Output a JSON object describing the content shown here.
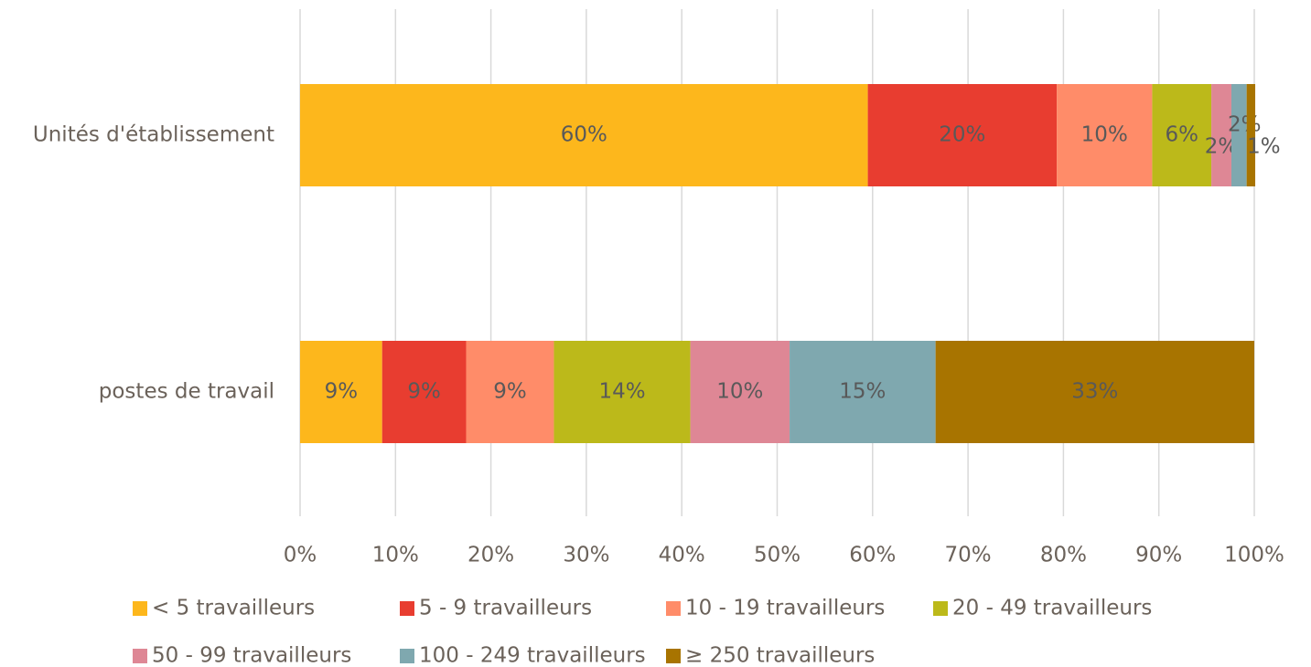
{
  "chart_data": {
    "type": "stacked_barh",
    "categories": [
      "Unités d'établissement",
      "postes de travail"
    ],
    "series": [
      {
        "name": "< 5 travailleurs",
        "color": "#FDB71C",
        "values": [
          59.5,
          8.6
        ],
        "value_labels": [
          "60%",
          "9%"
        ]
      },
      {
        "name": "5 - 9 travailleurs",
        "color": "#E83D30",
        "values": [
          19.8,
          8.8
        ],
        "value_labels": [
          "20%",
          "9%"
        ]
      },
      {
        "name": "10 - 19 travailleurs",
        "color": "#FF8C69",
        "values": [
          10.0,
          9.2
        ],
        "value_labels": [
          "10%",
          "9%"
        ]
      },
      {
        "name": "20 - 49 travailleurs",
        "color": "#BCB91A",
        "values": [
          6.2,
          14.3
        ],
        "value_labels": [
          "6%",
          "14%"
        ]
      },
      {
        "name": "50 - 99 travailleurs",
        "color": "#DE8795",
        "values": [
          2.1,
          10.4
        ],
        "value_labels": [
          "2%",
          "10%"
        ]
      },
      {
        "name": "100 - 249 travailleurs",
        "color": "#7FA8AF",
        "values": [
          1.6,
          15.3
        ],
        "value_labels": [
          "2%",
          "15%"
        ]
      },
      {
        "name": "≥ 250 travailleurs",
        "color": "#A87400",
        "values": [
          0.9,
          33.4
        ],
        "value_labels": [
          "1%",
          "33%"
        ]
      }
    ],
    "xlim": [
      0,
      100
    ],
    "xticks": [
      {
        "value": 0,
        "label": "0%"
      },
      {
        "value": 10,
        "label": "10%"
      },
      {
        "value": 20,
        "label": "20%"
      },
      {
        "value": 30,
        "label": "30%"
      },
      {
        "value": 40,
        "label": "40%"
      },
      {
        "value": 50,
        "label": "50%"
      },
      {
        "value": 60,
        "label": "60%"
      },
      {
        "value": 70,
        "label": "70%"
      },
      {
        "value": 80,
        "label": "80%"
      },
      {
        "value": 90,
        "label": "90%"
      },
      {
        "value": 100,
        "label": "100%"
      }
    ],
    "grid": true,
    "legend": "bottom"
  }
}
